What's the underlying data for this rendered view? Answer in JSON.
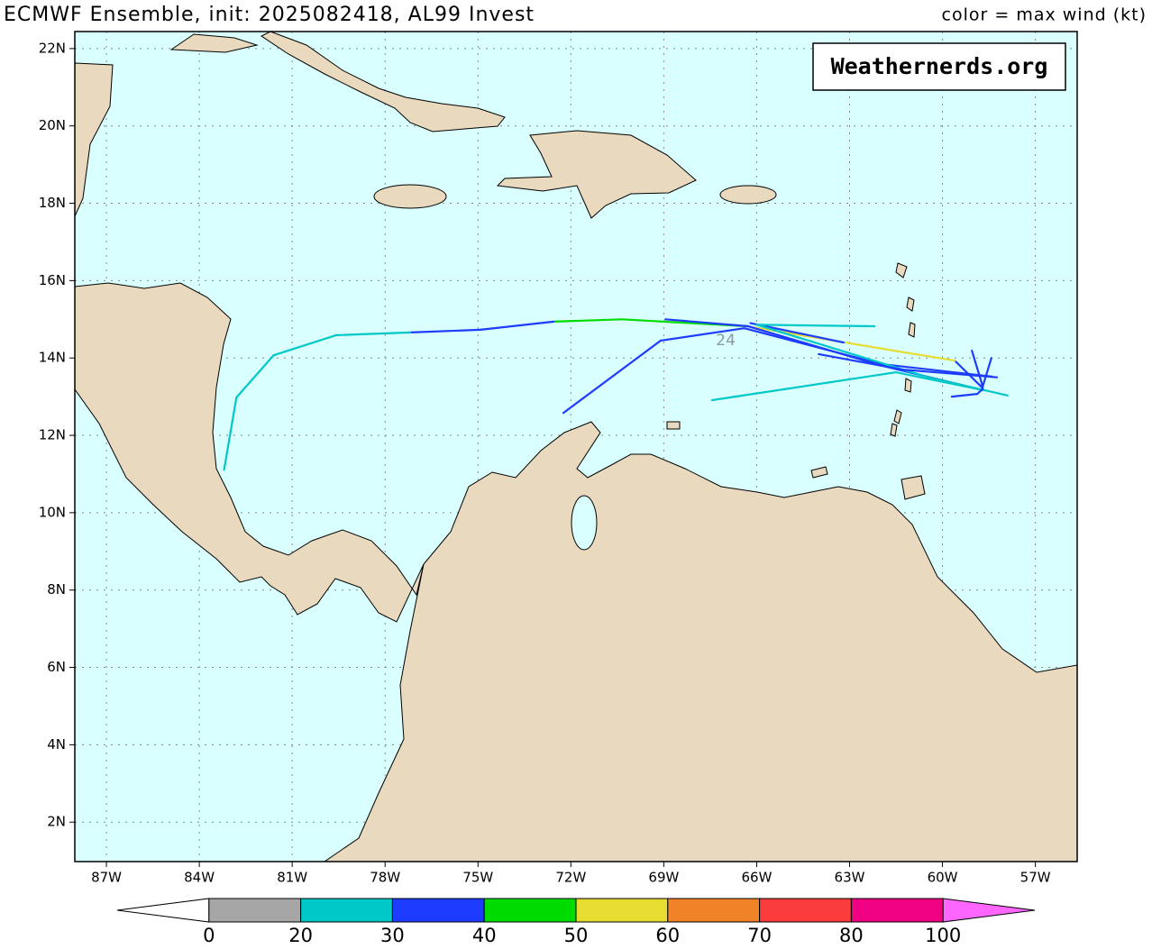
{
  "chart_data": {
    "type": "track-map",
    "title": "ECMWF Ensemble, init: 2025082418, AL99 Invest",
    "subtitle": "color = max wind (kt)",
    "watermark": "Weathernerds.org",
    "xlim": [
      -88.02,
      -55.65
    ],
    "ylim": [
      0.98,
      22.44
    ],
    "xticks": [
      {
        "value": -87,
        "label": "87W"
      },
      {
        "value": -84,
        "label": "84W"
      },
      {
        "value": -81,
        "label": "81W"
      },
      {
        "value": -78,
        "label": "78W"
      },
      {
        "value": -75,
        "label": "75W"
      },
      {
        "value": -72,
        "label": "72W"
      },
      {
        "value": -69,
        "label": "69W"
      },
      {
        "value": -66,
        "label": "66W"
      },
      {
        "value": -63,
        "label": "63W"
      },
      {
        "value": -60,
        "label": "60W"
      },
      {
        "value": -57,
        "label": "57W"
      }
    ],
    "yticks": [
      {
        "value": 2,
        "label": "2N"
      },
      {
        "value": 4,
        "label": "4N"
      },
      {
        "value": 6,
        "label": "6N"
      },
      {
        "value": 8,
        "label": "8N"
      },
      {
        "value": 10,
        "label": "10N"
      },
      {
        "value": 12,
        "label": "12N"
      },
      {
        "value": 14,
        "label": "14N"
      },
      {
        "value": 16,
        "label": "16N"
      },
      {
        "value": 18,
        "label": "18N"
      },
      {
        "value": 20,
        "label": "20N"
      },
      {
        "value": 22,
        "label": "22N"
      }
    ],
    "grid": true,
    "annotation": {
      "label": "24",
      "lon": -67.0,
      "lat": 14.45
    },
    "colorbar": {
      "levels": [
        0,
        20,
        30,
        40,
        50,
        60,
        70,
        80,
        100
      ],
      "colors": [
        "#a6a6a6",
        "#00c8c8",
        "#1e3cff",
        "#00dc00",
        "#e6dc32",
        "#f08228",
        "#fa3c3c",
        "#f00082"
      ],
      "under_color": "#ffffff",
      "over_color": "#ff66ff"
    },
    "series": [
      {
        "lon": [
          -58.7,
          -59.6,
          -66.3,
          -70.35,
          -72.56,
          -74.92,
          -77.19,
          -79.58,
          -81.6,
          -82.8,
          -83.2
        ],
        "lat": [
          13.22,
          13.93,
          14.82,
          15.0,
          14.94,
          14.73,
          14.66,
          14.59,
          14.07,
          12.98,
          11.11
        ],
        "wind": [
          30,
          50,
          40,
          40,
          30,
          30,
          20,
          20,
          20,
          20,
          20
        ]
      },
      {
        "lon": [
          -58.7,
          -62.05,
          -66.27,
          -68.95
        ],
        "lat": [
          13.17,
          13.82,
          14.82,
          15.0
        ],
        "wind": [
          30,
          30,
          30,
          30
        ]
      },
      {
        "lon": [
          -66.2,
          -63.19
        ],
        "lat": [
          14.9,
          14.4
        ],
        "wind": [
          30,
          30
        ]
      },
      {
        "lon": [
          -58.4,
          -61.96,
          -66.4,
          -69.1,
          -72.24
        ],
        "lat": [
          13.52,
          13.84,
          14.77,
          14.45,
          12.58
        ],
        "wind": [
          30,
          30,
          30,
          30,
          30
        ]
      },
      {
        "lon": [
          -58.7,
          -61.5,
          -67.44
        ],
        "lat": [
          13.17,
          13.63,
          12.91
        ],
        "wind": [
          20,
          20,
          20
        ]
      },
      {
        "lon": [
          -57.9,
          -60.46,
          -66.0,
          -62.2
        ],
        "lat": [
          13.03,
          13.5,
          14.86,
          14.82
        ],
        "wind": [
          20,
          20,
          20,
          20
        ]
      },
      {
        "lon": [
          -64.0,
          -61.3,
          -58.24
        ],
        "lat": [
          14.1,
          13.7,
          13.5
        ],
        "wind": [
          30,
          30,
          30
        ]
      },
      {
        "lon": [
          -59.05,
          -58.7,
          -58.42
        ],
        "lat": [
          14.19,
          13.26,
          14.0
        ],
        "wind": [
          30,
          30,
          30
        ]
      },
      {
        "lon": [
          -59.7,
          -58.88,
          -58.7
        ],
        "lat": [
          13.0,
          13.07,
          13.2
        ],
        "wind": [
          30,
          30,
          30
        ]
      }
    ]
  }
}
